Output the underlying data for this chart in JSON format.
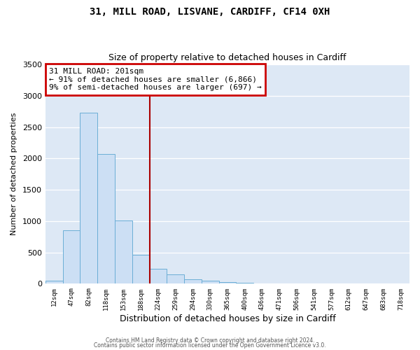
{
  "title": "31, MILL ROAD, LISVANE, CARDIFF, CF14 0XH",
  "subtitle": "Size of property relative to detached houses in Cardiff",
  "xlabel": "Distribution of detached houses by size in Cardiff",
  "ylabel": "Number of detached properties",
  "bar_labels": [
    "12sqm",
    "47sqm",
    "82sqm",
    "118sqm",
    "153sqm",
    "188sqm",
    "224sqm",
    "259sqm",
    "294sqm",
    "330sqm",
    "365sqm",
    "400sqm",
    "436sqm",
    "471sqm",
    "506sqm",
    "541sqm",
    "577sqm",
    "612sqm",
    "647sqm",
    "683sqm",
    "718sqm"
  ],
  "bar_values": [
    55,
    850,
    2730,
    2075,
    1010,
    460,
    240,
    155,
    70,
    50,
    30,
    15,
    5,
    0,
    0,
    0,
    0,
    0,
    0,
    0,
    0
  ],
  "bar_color": "#ccdff4",
  "bar_edge_color": "#6baed6",
  "vline_x": 5.5,
  "vline_color": "#aa0000",
  "annotation_line1": "31 MILL ROAD: 201sqm",
  "annotation_line2": "← 91% of detached houses are smaller (6,866)",
  "annotation_line3": "9% of semi-detached houses are larger (697) →",
  "annotation_box_color": "#cc0000",
  "ylim": [
    0,
    3500
  ],
  "yticks": [
    0,
    500,
    1000,
    1500,
    2000,
    2500,
    3000,
    3500
  ],
  "footer1": "Contains HM Land Registry data © Crown copyright and database right 2024.",
  "footer2": "Contains public sector information licensed under the Open Government Licence v3.0.",
  "fig_bg_color": "#ffffff",
  "plot_bg_color": "#dde8f5"
}
